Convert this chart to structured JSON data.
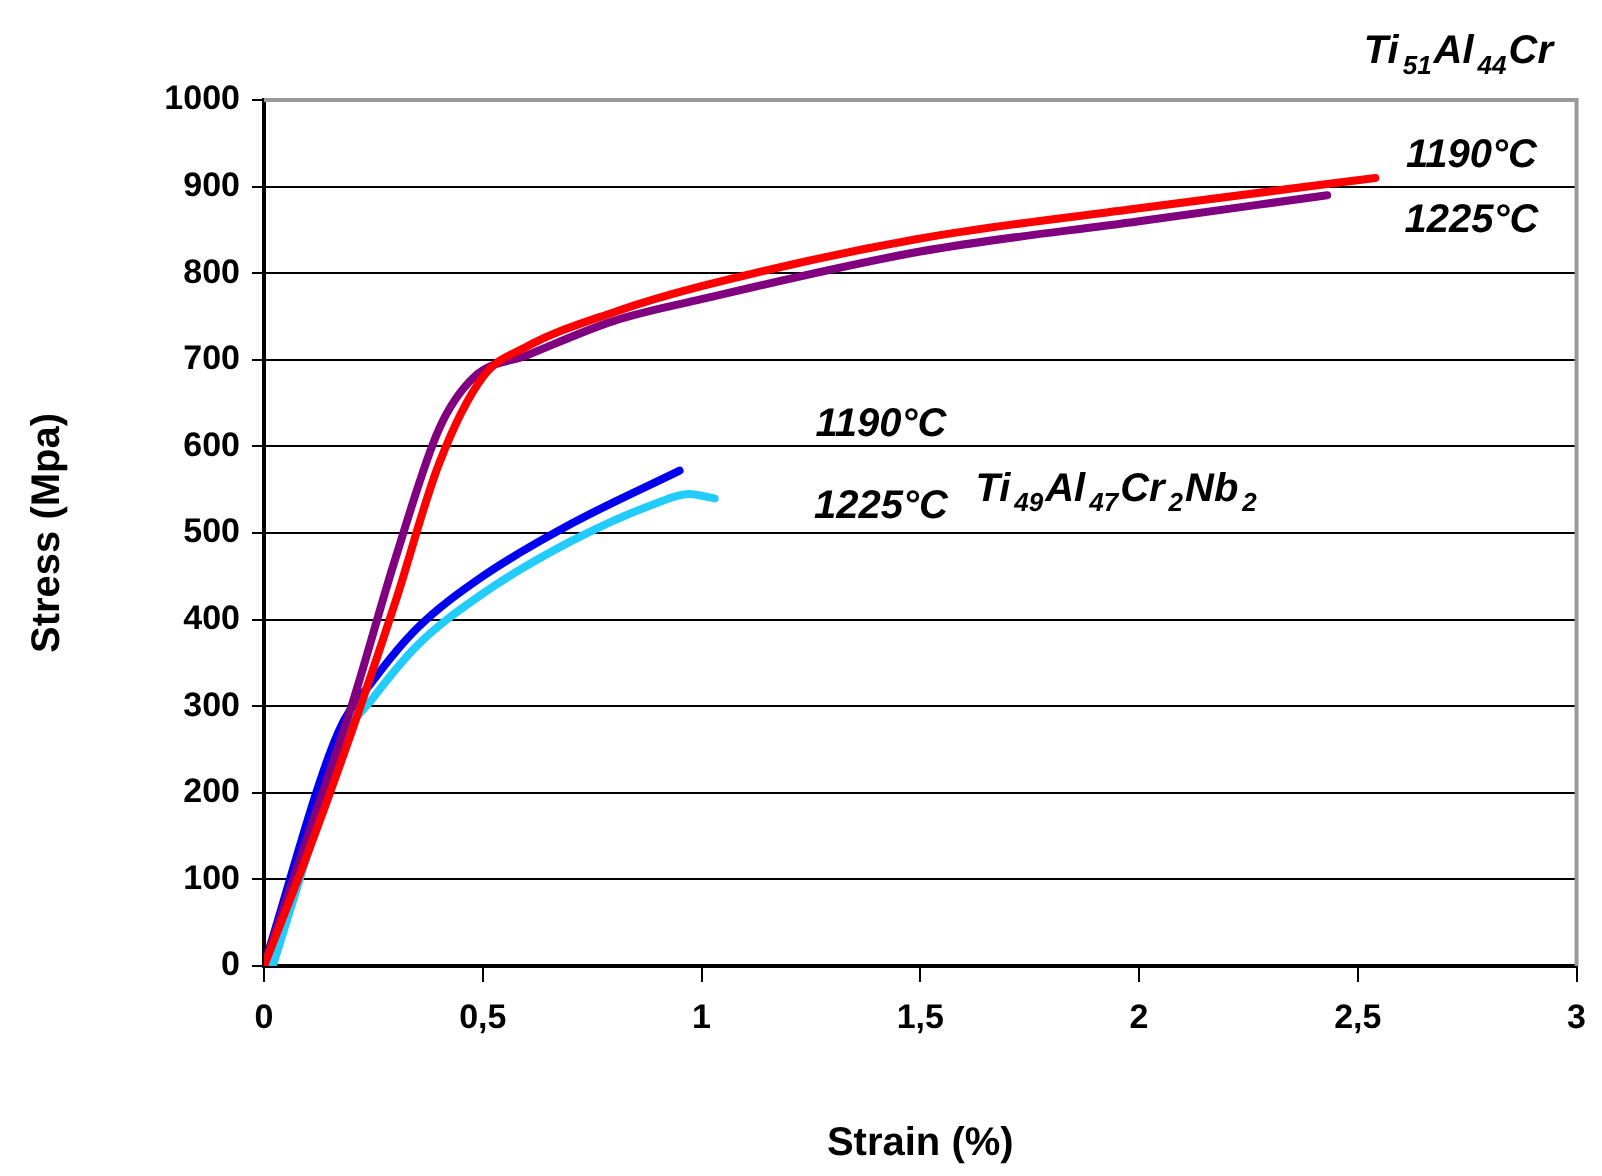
{
  "chart_data": {
    "type": "line",
    "xlabel": "Strain (%)",
    "ylabel": "Stress (Mpa)",
    "xlim": [
      0,
      3
    ],
    "xticks": [
      0,
      {
        "value": 0.5,
        "label": "0,5"
      },
      1,
      {
        "value": 1.5,
        "label": "1,5"
      },
      2,
      {
        "value": 2.5,
        "label": "2,5"
      },
      3
    ],
    "ylim": [
      0,
      1000
    ],
    "yticks": [
      0,
      100,
      200,
      300,
      400,
      500,
      600,
      700,
      800,
      900,
      1000
    ],
    "grid": "y",
    "legend": false,
    "marker": "none",
    "line_style": "solid",
    "series": [
      {
        "color": "#ff0000",
        "x": [
          0,
          0.1,
          0.2,
          0.3,
          0.4,
          0.5,
          0.6,
          0.8,
          1,
          1.5,
          2,
          2.54
        ],
        "values": [
          0,
          130,
          270,
          420,
          580,
          680,
          715,
          755,
          785,
          840,
          875,
          910
        ]
      },
      {
        "color": "#800080",
        "x": [
          0,
          0.1,
          0.2,
          0.3,
          0.4,
          0.48,
          0.6,
          0.8,
          1,
          1.5,
          2,
          2.43
        ],
        "values": [
          0,
          150,
          300,
          470,
          620,
          680,
          705,
          745,
          770,
          825,
          860,
          890
        ]
      },
      {
        "color": "#0000ee",
        "x": [
          0,
          0.17,
          0.25,
          0.35,
          0.5,
          0.7,
          0.95
        ],
        "values": [
          0,
          270,
          330,
          390,
          450,
          510,
          572
        ]
      },
      {
        "color": "#22ccff",
        "x": [
          0.02,
          0.1,
          0.18,
          0.25,
          0.35,
          0.5,
          0.7,
          0.9,
          0.97,
          1.03
        ],
        "values": [
          0,
          130,
          260,
          310,
          370,
          430,
          490,
          535,
          545,
          540
        ]
      }
    ],
    "annotations": [
      "Ti$_{51}$Al$_{44}$Cr",
      "1190°C",
      "1225°C",
      "1190°C",
      "1225°C",
      "Ti$_{49}$Al$_{47}$Cr$_{2}$Nb$_{2}$"
    ]
  }
}
